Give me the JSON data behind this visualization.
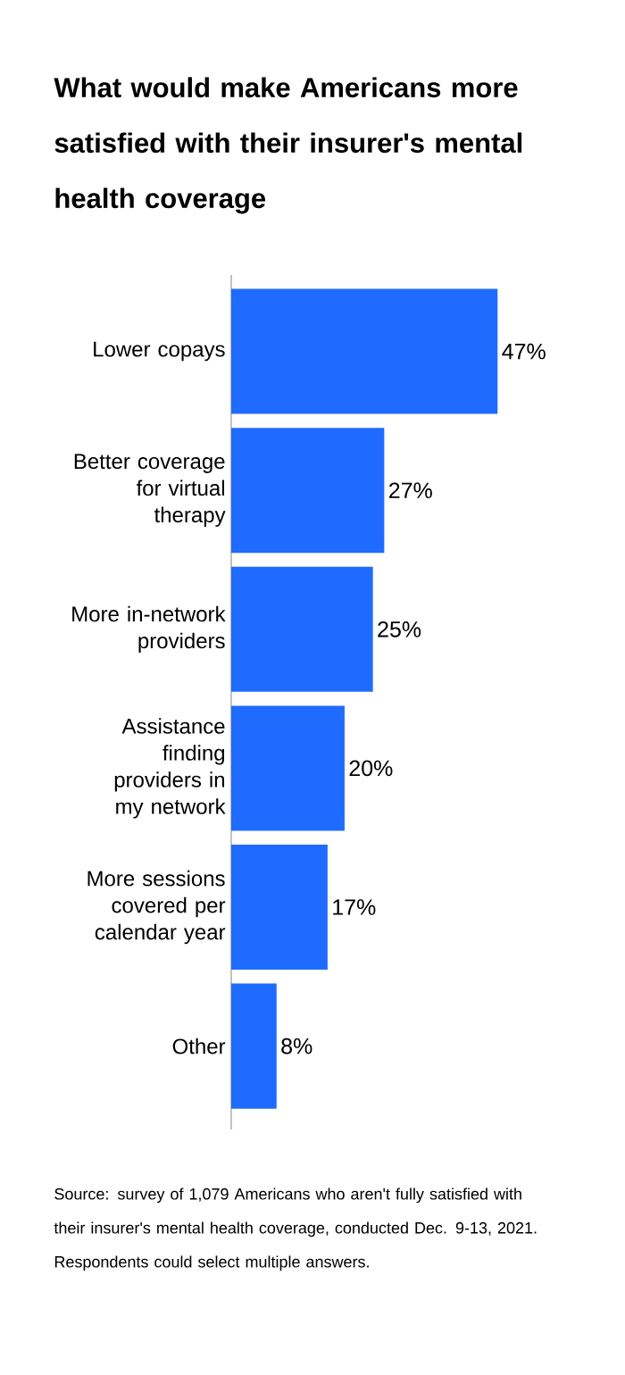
{
  "chart_data": {
    "type": "bar",
    "orientation": "horizontal",
    "title": "What would make Americans more satisfied with their insurer's mental health coverage",
    "categories": [
      "Lower copays",
      "Better coverage for virtual therapy",
      "More in-network providers",
      "Assistance finding providers in my network",
      "More sessions covered per calendar year",
      "Other"
    ],
    "values": [
      47,
      27,
      25,
      20,
      17,
      8
    ],
    "value_labels": [
      "47%",
      "27%",
      "25%",
      "20%",
      "17%",
      "8%"
    ],
    "color": "#1f6bff",
    "tick_labels": "y",
    "annotations": [
      "Source: survey of 1,079 Americans who aren't fully satisfied with their insurer's mental health coverage, conducted Dec. 9-13, 2021. Respondents could select multiple answers."
    ]
  }
}
